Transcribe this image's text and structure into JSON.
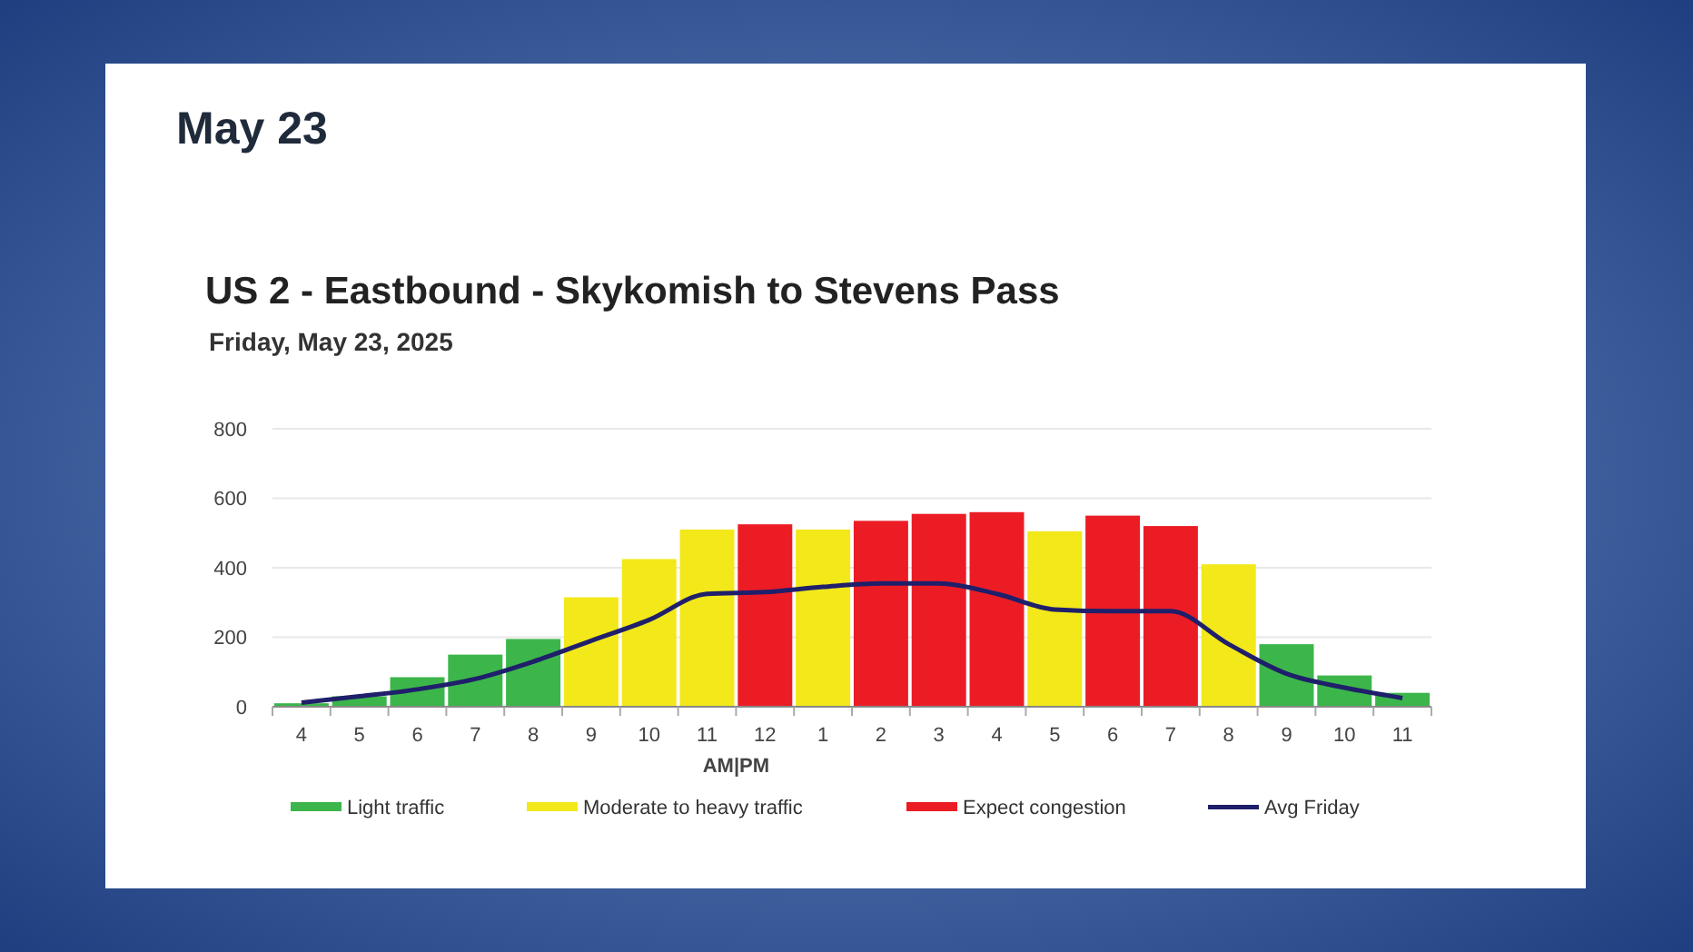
{
  "chart_data": {
    "type": "bar",
    "title": "US 2 - Eastbound - Skykomish to Stevens Pass",
    "subtitle": "Friday, May 23, 2025",
    "annotations": [
      "May 23",
      {
        "text": "AM|PM"
      }
    ],
    "categories": [
      "4",
      "5",
      "6",
      "7",
      "8",
      "9",
      "10",
      "11",
      "12",
      "1",
      "2",
      "3",
      "4",
      "5",
      "6",
      "7",
      "8",
      "9",
      "10",
      "11"
    ],
    "series": [
      {
        "name": "Light traffic",
        "color": "#3cb64a",
        "values": [
          10,
          30,
          85,
          150,
          195,
          null,
          null,
          null,
          null,
          null,
          null,
          null,
          null,
          null,
          null,
          null,
          null,
          180,
          90,
          40
        ]
      },
      {
        "name": "Moderate to heavy traffic",
        "color": "#f2e81a",
        "values": [
          null,
          null,
          null,
          null,
          null,
          315,
          425,
          510,
          null,
          510,
          null,
          null,
          null,
          505,
          null,
          null,
          410,
          null,
          null,
          null
        ]
      },
      {
        "name": "Expect congestion",
        "color": "#ec1c24",
        "values": [
          null,
          null,
          null,
          null,
          null,
          null,
          null,
          null,
          525,
          null,
          535,
          555,
          560,
          null,
          550,
          520,
          null,
          null,
          null,
          null
        ]
      },
      {
        "name": "Avg Friday",
        "type": "line",
        "color": "#1f1f6b",
        "values": [
          12,
          30,
          50,
          80,
          130,
          190,
          250,
          325,
          330,
          345,
          355,
          355,
          325,
          280,
          275,
          275,
          180,
          95,
          55,
          25
        ]
      }
    ],
    "ylim": [
      0,
      800
    ],
    "yticks": [
      0,
      200,
      400,
      600,
      800
    ],
    "grid": "y",
    "legend": "bottom",
    "marker": "none"
  }
}
